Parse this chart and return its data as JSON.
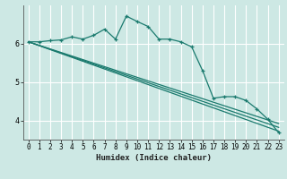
{
  "xlabel": "Humidex (Indice chaleur)",
  "bg_color": "#cde8e4",
  "grid_color": "#ffffff",
  "line_color": "#1a7a6e",
  "xlim": [
    -0.5,
    23.5
  ],
  "ylim": [
    3.5,
    7.0
  ],
  "yticks": [
    4,
    5,
    6
  ],
  "xticks": [
    0,
    1,
    2,
    3,
    4,
    5,
    6,
    7,
    8,
    9,
    10,
    11,
    12,
    13,
    14,
    15,
    16,
    17,
    18,
    19,
    20,
    21,
    22,
    23
  ],
  "series_main": {
    "x": [
      0,
      1,
      2,
      3,
      4,
      5,
      6,
      7,
      8,
      9,
      10,
      11,
      12,
      13,
      14,
      15,
      16,
      17,
      18,
      19,
      20,
      21,
      22,
      23
    ],
    "y": [
      6.05,
      6.05,
      6.08,
      6.1,
      6.18,
      6.12,
      6.22,
      6.38,
      6.12,
      6.72,
      6.58,
      6.45,
      6.12,
      6.12,
      6.05,
      5.92,
      5.3,
      4.58,
      4.62,
      4.62,
      4.52,
      4.3,
      4.03,
      3.68
    ]
  },
  "series_lines": [
    {
      "x": [
        0,
        23
      ],
      "y": [
        6.05,
        3.72
      ]
    },
    {
      "x": [
        0,
        23
      ],
      "y": [
        6.05,
        3.82
      ]
    },
    {
      "x": [
        0,
        23
      ],
      "y": [
        6.05,
        3.92
      ]
    }
  ]
}
